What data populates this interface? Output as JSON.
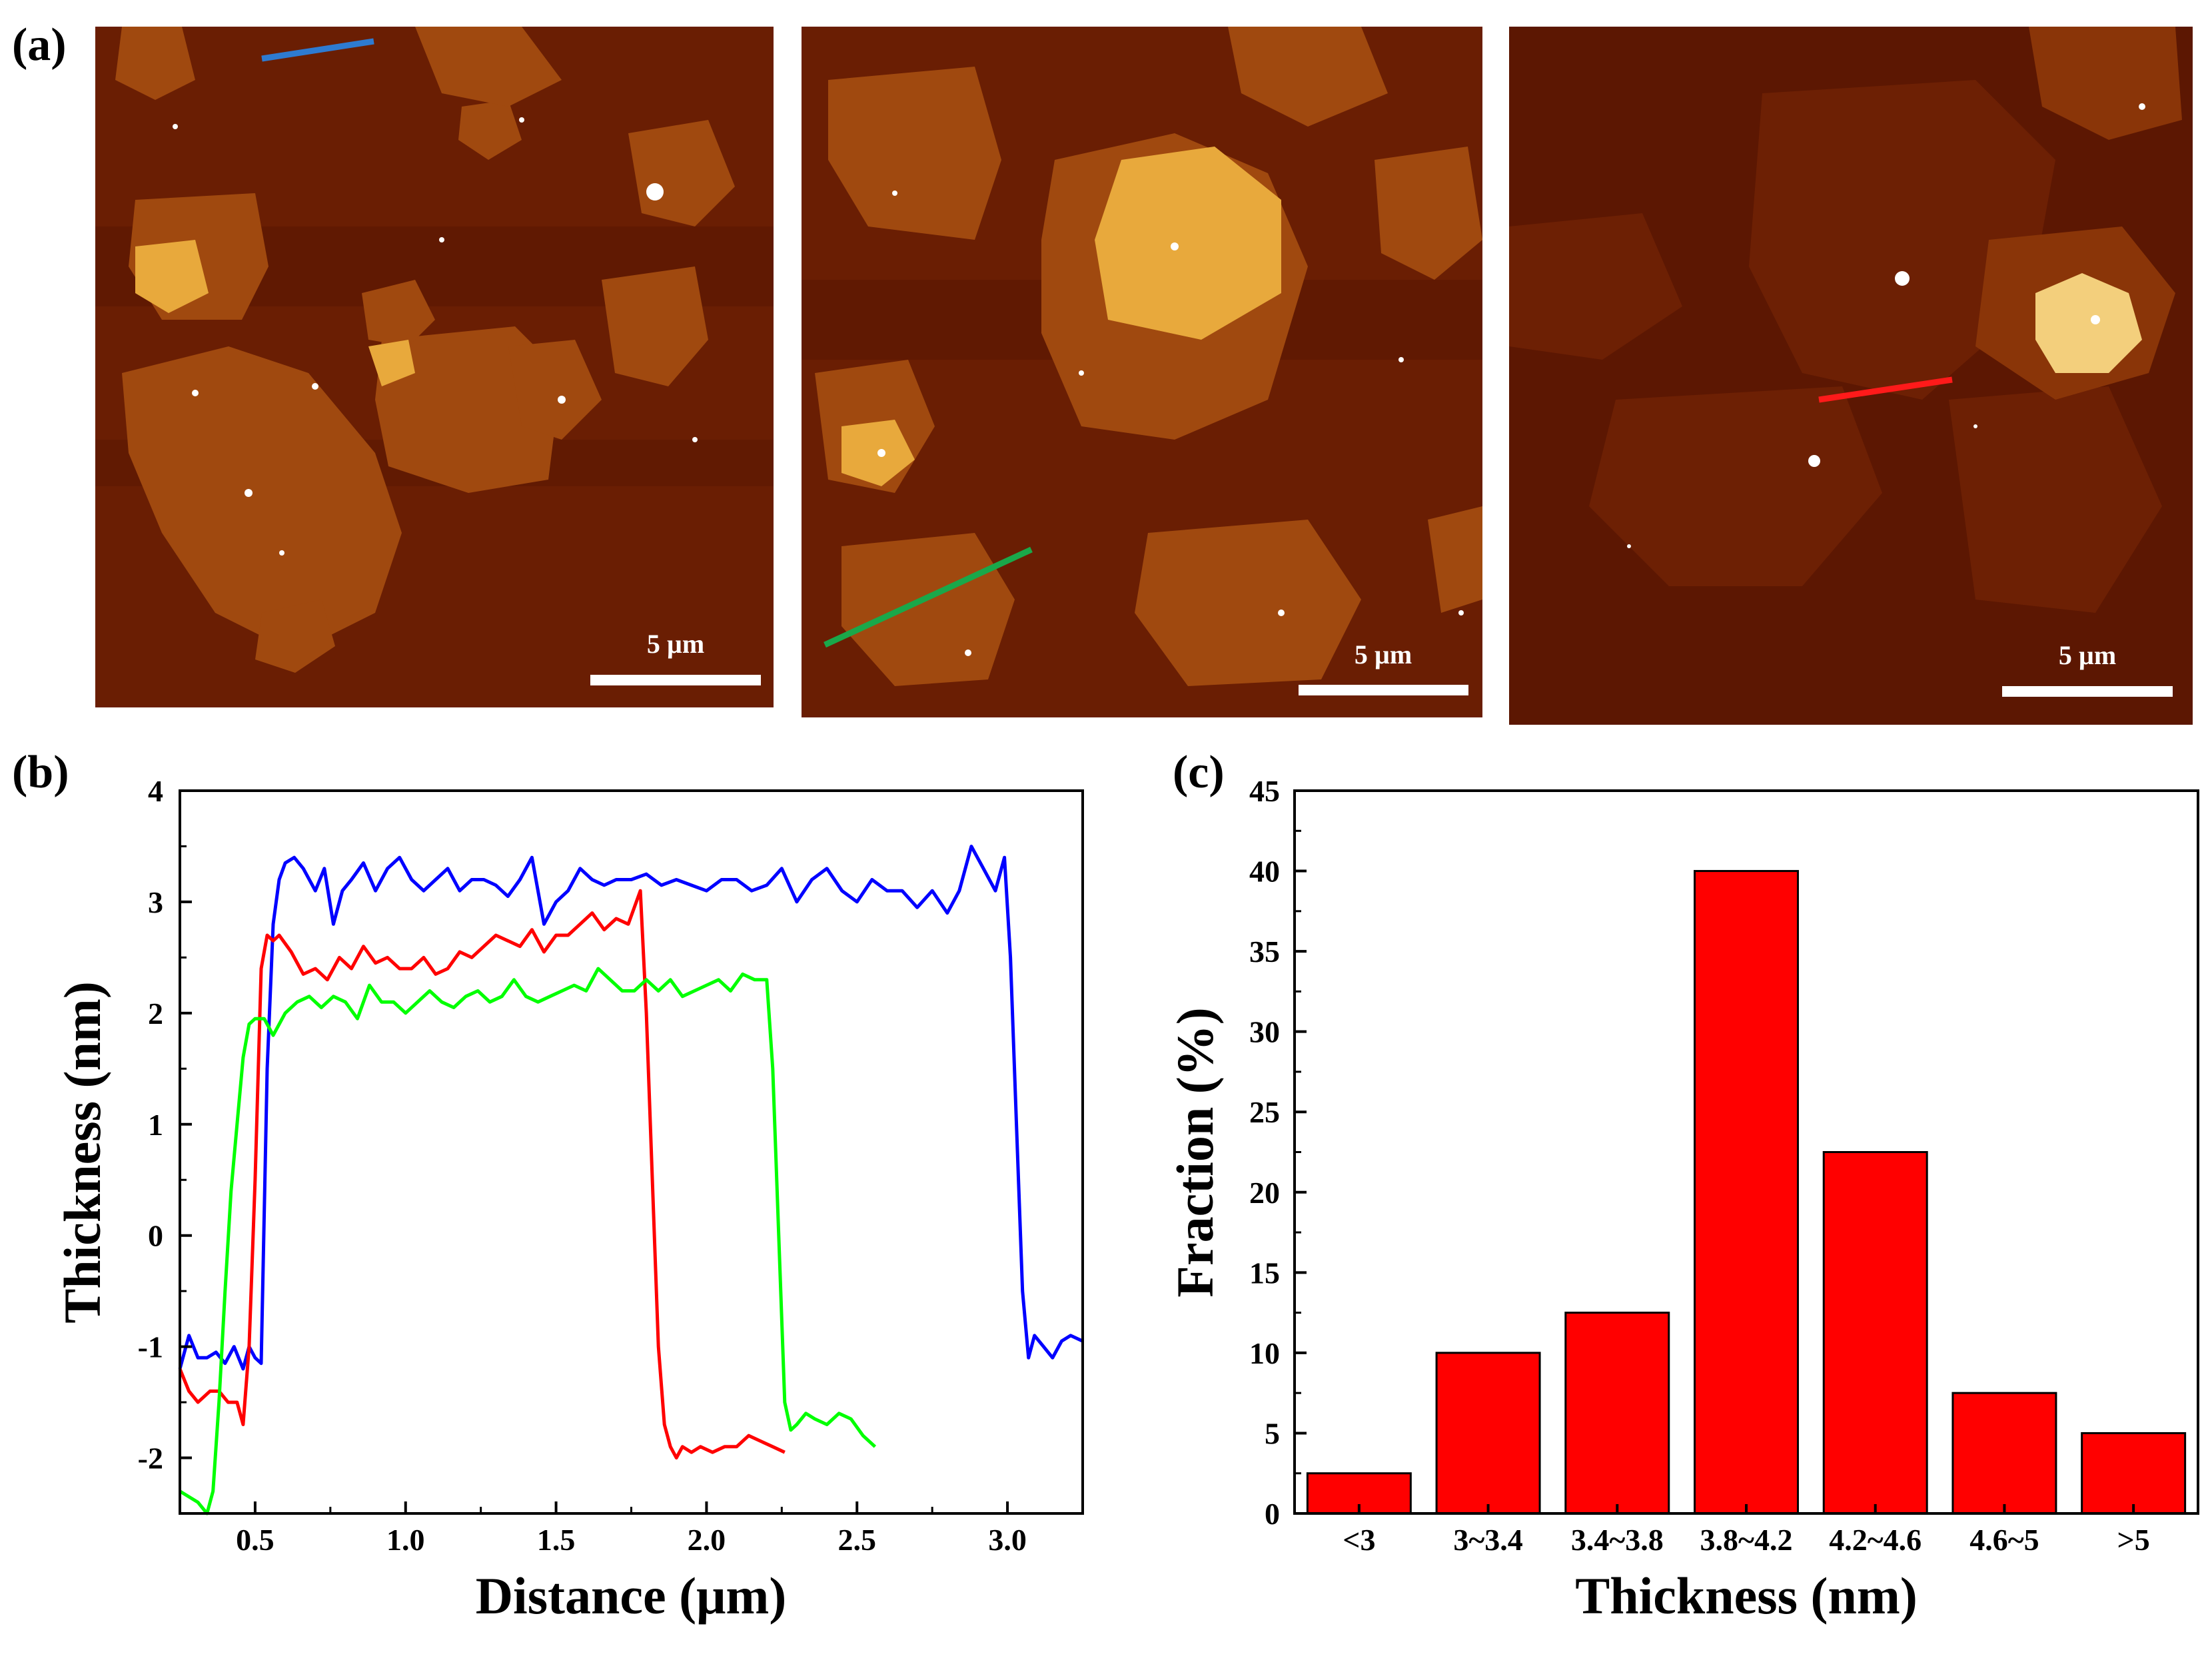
{
  "panel_labels": {
    "a": "(a)",
    "b": "(b)",
    "c": "(c)"
  },
  "afm_images": [
    {
      "scale_label": "5 µm",
      "line_color": "#2e7bd1"
    },
    {
      "scale_label": "5 µm",
      "line_color": "#1aa84a"
    },
    {
      "scale_label": "5 µm",
      "line_color": "#ff1a1a"
    }
  ],
  "chart_data": [
    {
      "type": "line",
      "title": "",
      "xlabel": "Distance (μm)",
      "ylabel": "Thickness (nm)",
      "xlim": [
        0.25,
        3.25
      ],
      "ylim": [
        -2.5,
        4
      ],
      "xticks": [
        0.5,
        1.0,
        1.5,
        2.0,
        2.5,
        3.0
      ],
      "xtick_labels": [
        "0.5",
        "1.0",
        "1.5",
        "2.0",
        "2.5",
        "3.0"
      ],
      "yticks": [
        -2,
        -1,
        0,
        1,
        2,
        3,
        4
      ],
      "ytick_labels": [
        "-2",
        "-1",
        "0",
        "1",
        "2",
        "3",
        "4"
      ],
      "series": [
        {
          "name": "blue",
          "color": "#0000ff",
          "x": [
            0.25,
            0.28,
            0.31,
            0.34,
            0.37,
            0.4,
            0.43,
            0.46,
            0.48,
            0.5,
            0.52,
            0.54,
            0.56,
            0.58,
            0.6,
            0.63,
            0.66,
            0.7,
            0.73,
            0.76,
            0.79,
            0.82,
            0.86,
            0.9,
            0.94,
            0.98,
            1.02,
            1.06,
            1.1,
            1.14,
            1.18,
            1.22,
            1.26,
            1.3,
            1.34,
            1.38,
            1.42,
            1.46,
            1.5,
            1.54,
            1.58,
            1.62,
            1.66,
            1.7,
            1.75,
            1.8,
            1.85,
            1.9,
            1.95,
            2.0,
            2.05,
            2.1,
            2.15,
            2.2,
            2.25,
            2.3,
            2.35,
            2.4,
            2.45,
            2.5,
            2.55,
            2.6,
            2.65,
            2.7,
            2.75,
            2.8,
            2.84,
            2.88,
            2.92,
            2.96,
            2.99,
            3.01,
            3.03,
            3.05,
            3.07,
            3.09,
            3.12,
            3.15,
            3.18,
            3.21,
            3.25
          ],
          "y": [
            -1.2,
            -0.9,
            -1.1,
            -1.1,
            -1.05,
            -1.15,
            -1.0,
            -1.2,
            -1.0,
            -1.1,
            -1.15,
            1.5,
            2.8,
            3.2,
            3.35,
            3.4,
            3.3,
            3.1,
            3.3,
            2.8,
            3.1,
            3.2,
            3.35,
            3.1,
            3.3,
            3.4,
            3.2,
            3.1,
            3.2,
            3.3,
            3.1,
            3.2,
            3.2,
            3.15,
            3.05,
            3.2,
            3.4,
            2.8,
            3.0,
            3.1,
            3.3,
            3.2,
            3.15,
            3.2,
            3.2,
            3.25,
            3.15,
            3.2,
            3.15,
            3.1,
            3.2,
            3.2,
            3.1,
            3.15,
            3.3,
            3.0,
            3.2,
            3.3,
            3.1,
            3.0,
            3.2,
            3.1,
            3.1,
            2.95,
            3.1,
            2.9,
            3.1,
            3.5,
            3.3,
            3.1,
            3.4,
            2.5,
            1.0,
            -0.5,
            -1.1,
            -0.9,
            -1.0,
            -1.1,
            -0.95,
            -0.9,
            -0.95
          ]
        },
        {
          "name": "red",
          "color": "#ff0000",
          "x": [
            0.25,
            0.28,
            0.31,
            0.35,
            0.38,
            0.41,
            0.44,
            0.46,
            0.48,
            0.5,
            0.52,
            0.54,
            0.56,
            0.58,
            0.62,
            0.66,
            0.7,
            0.74,
            0.78,
            0.82,
            0.86,
            0.9,
            0.94,
            0.98,
            1.02,
            1.06,
            1.1,
            1.14,
            1.18,
            1.22,
            1.26,
            1.3,
            1.34,
            1.38,
            1.42,
            1.46,
            1.5,
            1.54,
            1.58,
            1.62,
            1.66,
            1.7,
            1.74,
            1.78,
            1.8,
            1.82,
            1.84,
            1.86,
            1.88,
            1.9,
            1.92,
            1.95,
            1.98,
            2.02,
            2.06,
            2.1,
            2.14,
            2.18,
            2.22,
            2.26
          ],
          "y": [
            -1.2,
            -1.4,
            -1.5,
            -1.4,
            -1.4,
            -1.5,
            -1.5,
            -1.7,
            -1.0,
            0.5,
            2.4,
            2.7,
            2.65,
            2.7,
            2.55,
            2.35,
            2.4,
            2.3,
            2.5,
            2.4,
            2.6,
            2.45,
            2.5,
            2.4,
            2.4,
            2.5,
            2.35,
            2.4,
            2.55,
            2.5,
            2.6,
            2.7,
            2.65,
            2.6,
            2.75,
            2.55,
            2.7,
            2.7,
            2.8,
            2.9,
            2.75,
            2.85,
            2.8,
            3.1,
            2.0,
            0.5,
            -1.0,
            -1.7,
            -1.9,
            -2.0,
            -1.9,
            -1.95,
            -1.9,
            -1.95,
            -1.9,
            -1.9,
            -1.8,
            -1.85,
            -1.9,
            -1.95
          ]
        },
        {
          "name": "green",
          "color": "#00ff00",
          "x": [
            0.25,
            0.28,
            0.31,
            0.34,
            0.36,
            0.38,
            0.4,
            0.42,
            0.44,
            0.46,
            0.48,
            0.5,
            0.53,
            0.56,
            0.6,
            0.64,
            0.68,
            0.72,
            0.76,
            0.8,
            0.84,
            0.88,
            0.92,
            0.96,
            1.0,
            1.04,
            1.08,
            1.12,
            1.16,
            1.2,
            1.24,
            1.28,
            1.32,
            1.36,
            1.4,
            1.44,
            1.48,
            1.52,
            1.56,
            1.6,
            1.64,
            1.68,
            1.72,
            1.76,
            1.8,
            1.84,
            1.88,
            1.92,
            1.96,
            2.0,
            2.04,
            2.08,
            2.12,
            2.16,
            2.2,
            2.22,
            2.24,
            2.26,
            2.28,
            2.3,
            2.33,
            2.36,
            2.4,
            2.44,
            2.48,
            2.52,
            2.56
          ],
          "y": [
            -2.3,
            -2.35,
            -2.4,
            -2.5,
            -2.3,
            -1.5,
            -0.5,
            0.4,
            1.0,
            1.6,
            1.9,
            1.95,
            1.95,
            1.8,
            2.0,
            2.1,
            2.15,
            2.05,
            2.15,
            2.1,
            1.95,
            2.25,
            2.1,
            2.1,
            2.0,
            2.1,
            2.2,
            2.1,
            2.05,
            2.15,
            2.2,
            2.1,
            2.15,
            2.3,
            2.15,
            2.1,
            2.15,
            2.2,
            2.25,
            2.2,
            2.4,
            2.3,
            2.2,
            2.2,
            2.3,
            2.2,
            2.3,
            2.15,
            2.2,
            2.25,
            2.3,
            2.2,
            2.35,
            2.3,
            2.3,
            1.5,
            0.0,
            -1.5,
            -1.75,
            -1.7,
            -1.6,
            -1.65,
            -1.7,
            -1.6,
            -1.65,
            -1.8,
            -1.9
          ]
        }
      ]
    },
    {
      "type": "bar",
      "title": "",
      "xlabel": "Thickness (nm)",
      "ylabel": "Fraction (%)",
      "categories": [
        "<3",
        "3~3.4",
        "3.4~3.8",
        "3.8~4.2",
        "4.2~4.6",
        "4.6~5",
        ">5"
      ],
      "values": [
        2.5,
        10,
        12.5,
        40,
        22.5,
        7.5,
        5
      ],
      "ylim": [
        0,
        45
      ],
      "yticks": [
        0,
        5,
        10,
        15,
        20,
        25,
        30,
        35,
        40,
        45
      ],
      "ytick_labels": [
        "0",
        "5",
        "10",
        "15",
        "20",
        "25",
        "30",
        "35",
        "40",
        "45"
      ],
      "bar_color": "#ff0000"
    }
  ]
}
